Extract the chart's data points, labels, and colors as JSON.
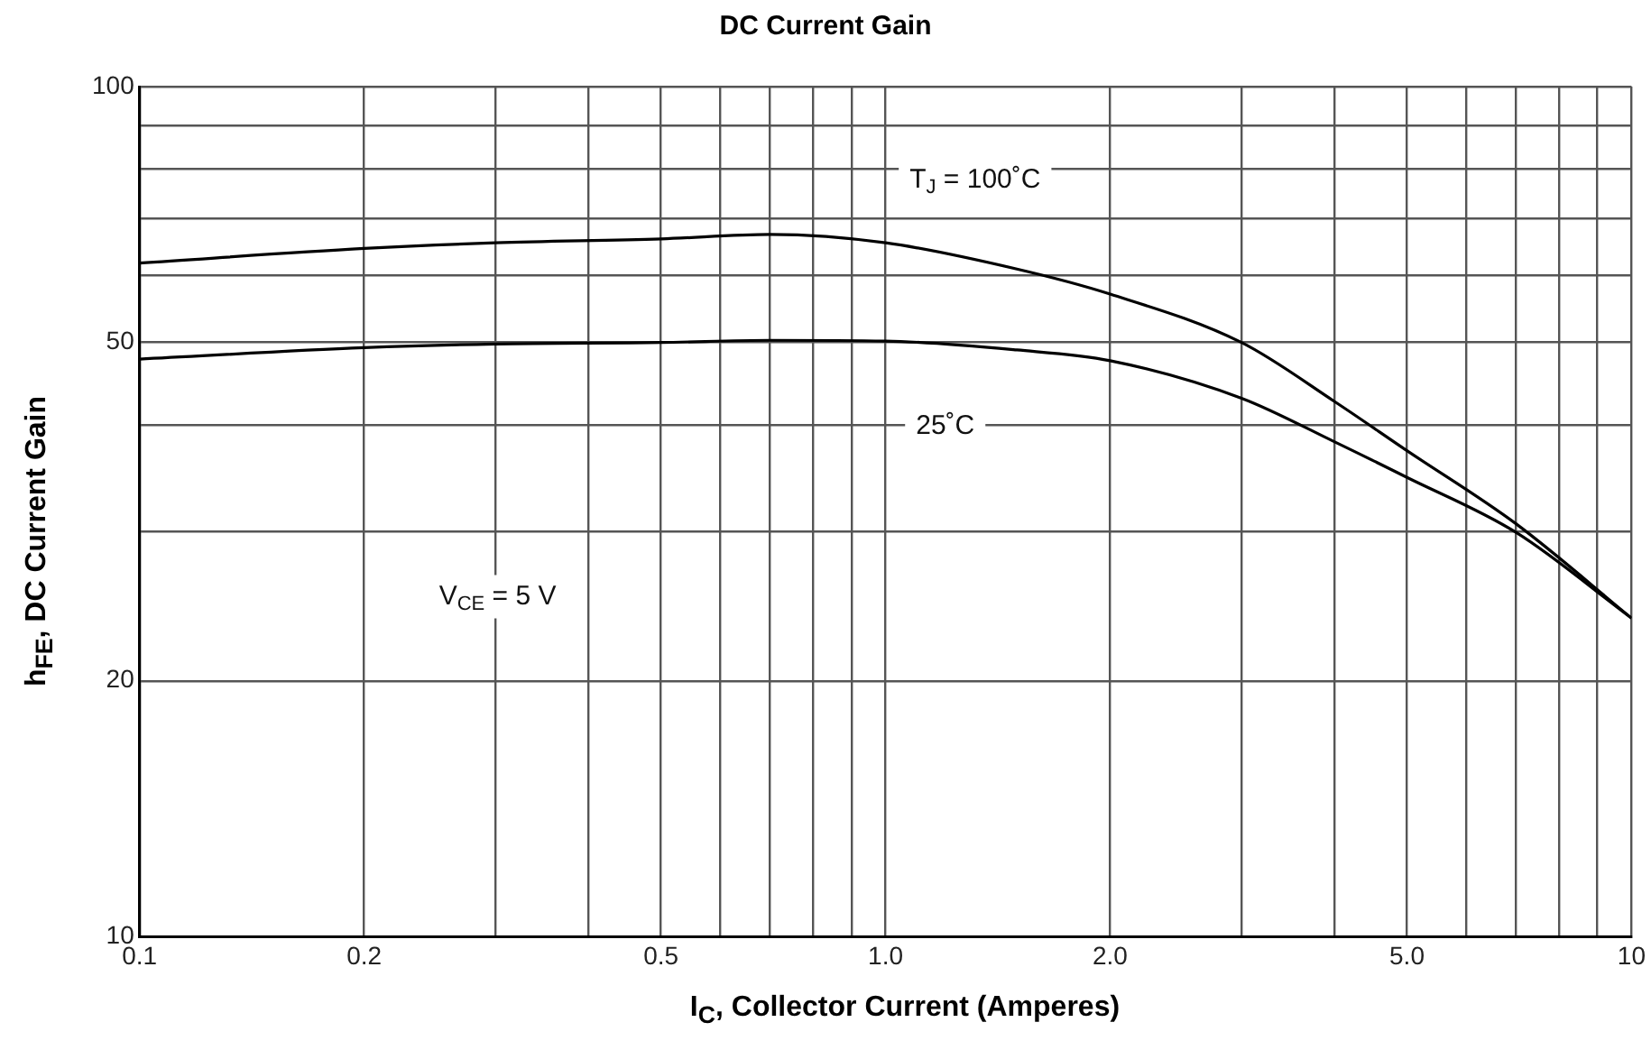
{
  "chart_data": {
    "type": "line",
    "title": "DC Current Gain",
    "xlabel": "I$_{C}$, Collector Current (Amperes)",
    "ylabel": "h$_{FE}$, DC Current Gain",
    "log": "xy",
    "grid": true,
    "marker": "none",
    "line_style": "solid",
    "legend": false,
    "xlim": [
      0.1,
      10
    ],
    "xticks": [
      0.1,
      0.2,
      {
        "value": 0.3,
        "label": null
      },
      {
        "value": 0.4,
        "label": null
      },
      0.5,
      {
        "value": 0.6,
        "label": null
      },
      {
        "value": 0.7,
        "label": null
      },
      {
        "value": 0.8,
        "label": null
      },
      {
        "value": 0.9,
        "label": null
      },
      {
        "value": 1,
        "label": "1.0"
      },
      {
        "value": 2,
        "label": "2.0"
      },
      {
        "value": 3,
        "label": null
      },
      {
        "value": 4,
        "label": null
      },
      {
        "value": 5,
        "label": "5.0"
      },
      {
        "value": 6,
        "label": null
      },
      {
        "value": 7,
        "label": null
      },
      {
        "value": 8,
        "label": null
      },
      {
        "value": 9,
        "label": null
      },
      10
    ],
    "ylim": [
      10,
      100
    ],
    "yticks": [
      10,
      20,
      {
        "value": 30,
        "label": null
      },
      {
        "value": 40,
        "label": null
      },
      50,
      {
        "value": 60,
        "label": null
      },
      {
        "value": 70,
        "label": null
      },
      {
        "value": 80,
        "label": null
      },
      {
        "value": 90,
        "label": null
      },
      100
    ],
    "series": [
      {
        "color": "#000000",
        "x": [
          0.1,
          0.2,
          0.3,
          0.5,
          0.7,
          1,
          1.5,
          2,
          3,
          4,
          5,
          7,
          10
        ],
        "values": [
          62,
          64.5,
          65.5,
          66.2,
          67,
          65.5,
          61,
          57,
          50,
          42.6,
          37.3,
          30.6,
          23.7
        ]
      },
      {
        "color": "#000000",
        "x": [
          0.1,
          0.2,
          0.3,
          0.5,
          0.7,
          1,
          1.5,
          2,
          3,
          4,
          5,
          7,
          10
        ],
        "values": [
          47.8,
          49.3,
          49.8,
          50,
          50.3,
          50.2,
          49,
          47.6,
          43,
          38.2,
          34.7,
          29.9,
          23.7
        ]
      }
    ],
    "annotations": [
      "T$_{J}$ = 100˚C",
      "25˚C",
      "V$_{CE}$ = 5 V"
    ]
  }
}
